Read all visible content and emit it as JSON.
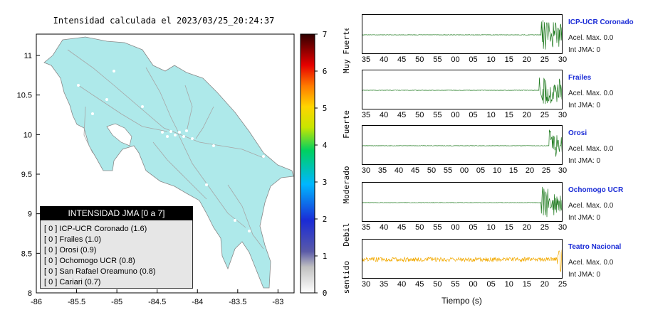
{
  "map": {
    "title": "Intensidad calculada el 2023/03/25_20:24:37",
    "x_ticks": [
      "-86",
      "-85.5",
      "-85",
      "-84.5",
      "-84",
      "-83.5",
      "-83"
    ],
    "y_ticks": [
      "11",
      "10.5",
      "10",
      "9.5",
      "9",
      "8.5",
      "8"
    ],
    "land_color": "#aee9ea",
    "sea_color": "#ffffff"
  },
  "colorbar": {
    "ticks": [
      "7",
      "6",
      "5",
      "4",
      "3",
      "2",
      "1",
      "0"
    ],
    "labels": [
      "Muy Fuerte",
      "Fuerte",
      "Moderado",
      "Debil",
      "No sentido"
    ]
  },
  "legend": {
    "title": "INTENSIDAD JMA [0 a 7]",
    "rows": [
      {
        "level": "[ 0 ]",
        "text": "ICP-UCR Coronado (1.6)"
      },
      {
        "level": "[ 0 ]",
        "text": "Frailes (1.0)"
      },
      {
        "level": "[ 0 ]",
        "text": "Orosi (0.9)"
      },
      {
        "level": "[ 0 ]",
        "text": "Ochomogo UCR (0.8)"
      },
      {
        "level": "[ 0 ]",
        "text": "San Rafael Oreamuno (0.8)"
      },
      {
        "level": "[ 0 ]",
        "text": "Cariari (0.7)"
      }
    ]
  },
  "stations": [
    {
      "name": "ICP-UCR Coronado",
      "accel": "Acel. Max. 0.0",
      "int": "Int JMA: 0",
      "ticks": [
        "35",
        "40",
        "45",
        "50",
        "55",
        "00",
        "05",
        "10",
        "15",
        "20",
        "25",
        "30"
      ],
      "color": "#1f7a1f",
      "burst_start": 0.89
    },
    {
      "name": "Frailes",
      "accel": "Acel. Max. 0.0",
      "int": "Int JMA: 0",
      "ticks": [
        "35",
        "40",
        "45",
        "50",
        "55",
        "00",
        "05",
        "10",
        "15",
        "20",
        "25",
        "30"
      ],
      "color": "#1f7a1f",
      "burst_start": 0.88
    },
    {
      "name": "Orosi",
      "accel": "Acel. Max. 0.0",
      "int": "Int JMA: 0",
      "ticks": [
        "30",
        "35",
        "40",
        "45",
        "50",
        "55",
        "00",
        "05",
        "10",
        "15",
        "20",
        "25",
        "30"
      ],
      "color": "#1f7a1f",
      "burst_start": 0.93
    },
    {
      "name": "Ochomogo UCR",
      "accel": "Acel. Max. 0.0",
      "int": "Int JMA: 0",
      "ticks": [
        "35",
        "40",
        "45",
        "50",
        "55",
        "00",
        "05",
        "10",
        "15",
        "20",
        "25",
        "30"
      ],
      "color": "#1f7a1f",
      "burst_start": 0.89
    },
    {
      "name": "Teatro Nacional",
      "accel": "Acel. Max. 0.0",
      "int": "Int JMA: 0",
      "ticks": [
        "30",
        "35",
        "40",
        "45",
        "50",
        "55",
        "00",
        "05",
        "10",
        "15",
        "20",
        "25"
      ],
      "color": "#f2a900",
      "burst_start": 0.97
    }
  ],
  "time_axis_label": "Tiempo (s)"
}
